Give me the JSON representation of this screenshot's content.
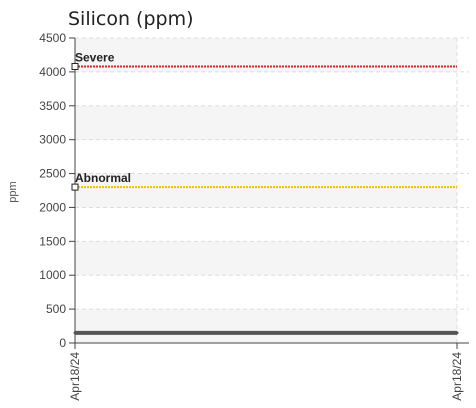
{
  "chart_data": {
    "type": "line",
    "title": "Silicon (ppm)",
    "ylabel": "ppm",
    "xlabel": "",
    "ylim": [
      0,
      4500
    ],
    "yticks": [
      0,
      500,
      1000,
      1500,
      2000,
      2500,
      3000,
      3500,
      4000,
      4500
    ],
    "x_tick_labels": [
      "Apr18/24",
      "Apr18/24"
    ],
    "grid": true,
    "series": [
      {
        "values": [
          150,
          150
        ],
        "color": "#555555"
      }
    ],
    "thresholds": [
      {
        "label": "Severe",
        "value": 4080,
        "color": "#d62728"
      },
      {
        "label": "Abnormal",
        "value": 2300,
        "color": "#f2c200"
      }
    ]
  }
}
